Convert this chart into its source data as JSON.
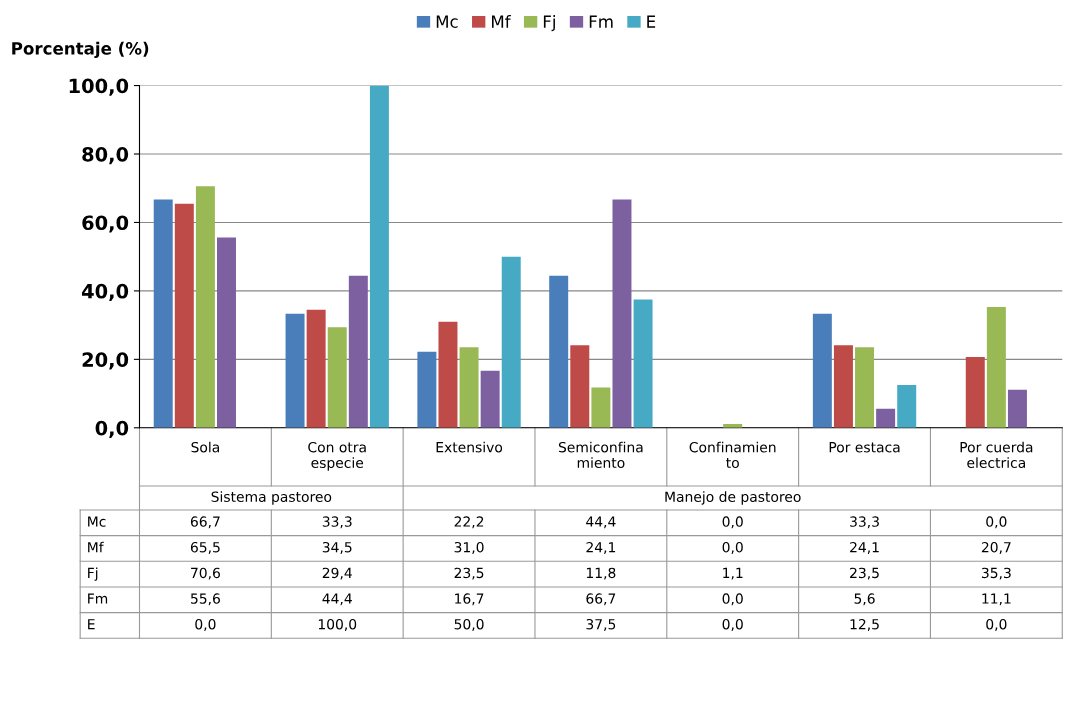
{
  "chart_data": {
    "type": "bar",
    "ylabel": "Porcentaje (%)",
    "categories": [
      "Sola",
      "Con otra\nespecie",
      "Extensivo",
      "Semiconfina\nmiento",
      "Confinamien\nto",
      "Por estaca",
      "Por cuerda\nelectrica"
    ],
    "series": [
      {
        "name": "Mc",
        "color": "#4a7ebb",
        "values": [
          66.7,
          33.3,
          22.2,
          44.4,
          0.0,
          33.3,
          0.0
        ],
        "value_labels": [
          "66,7",
          "33,3",
          "22,2",
          "44,4",
          "0,0",
          "33,3",
          "0,0"
        ]
      },
      {
        "name": "Mf",
        "color": "#be4b48",
        "values": [
          65.5,
          34.5,
          31.0,
          24.1,
          0.0,
          24.1,
          20.7
        ],
        "value_labels": [
          "65,5",
          "34,5",
          "31,0",
          "24,1",
          "0,0",
          "24,1",
          "20,7"
        ]
      },
      {
        "name": "Fj",
        "color": "#98b954",
        "values": [
          70.6,
          29.4,
          23.5,
          11.8,
          1.1,
          23.5,
          35.3
        ],
        "value_labels": [
          "70,6",
          "29,4",
          "23,5",
          "11,8",
          "1,1",
          "23,5",
          "35,3"
        ]
      },
      {
        "name": "Fm",
        "color": "#7d60a0",
        "values": [
          55.6,
          44.4,
          16.7,
          66.7,
          0.0,
          5.6,
          11.1
        ],
        "value_labels": [
          "55,6",
          "44,4",
          "16,7",
          "66,7",
          "0,0",
          "5,6",
          "11,1"
        ]
      },
      {
        "name": "E",
        "color": "#46aac5",
        "values": [
          0.0,
          100.0,
          50.0,
          37.5,
          0.0,
          12.5,
          0.0
        ],
        "value_labels": [
          "0,0",
          "100,0",
          "50,0",
          "37,5",
          "0,0",
          "12,5",
          "0,0"
        ]
      }
    ],
    "annotations": [
      "Sistema pastoreo",
      "Manejo de pastoreo"
    ],
    "ylim": [
      0,
      100
    ],
    "yticks": [
      {
        "value": 0,
        "label": "0,0"
      },
      {
        "value": 20,
        "label": "20,0"
      },
      {
        "value": 40,
        "label": "40,0"
      },
      {
        "value": 60,
        "label": "60,0"
      },
      {
        "value": 80,
        "label": "80,0"
      },
      {
        "value": 100,
        "label": "100,0"
      }
    ],
    "grid": "y",
    "legend": "top"
  }
}
